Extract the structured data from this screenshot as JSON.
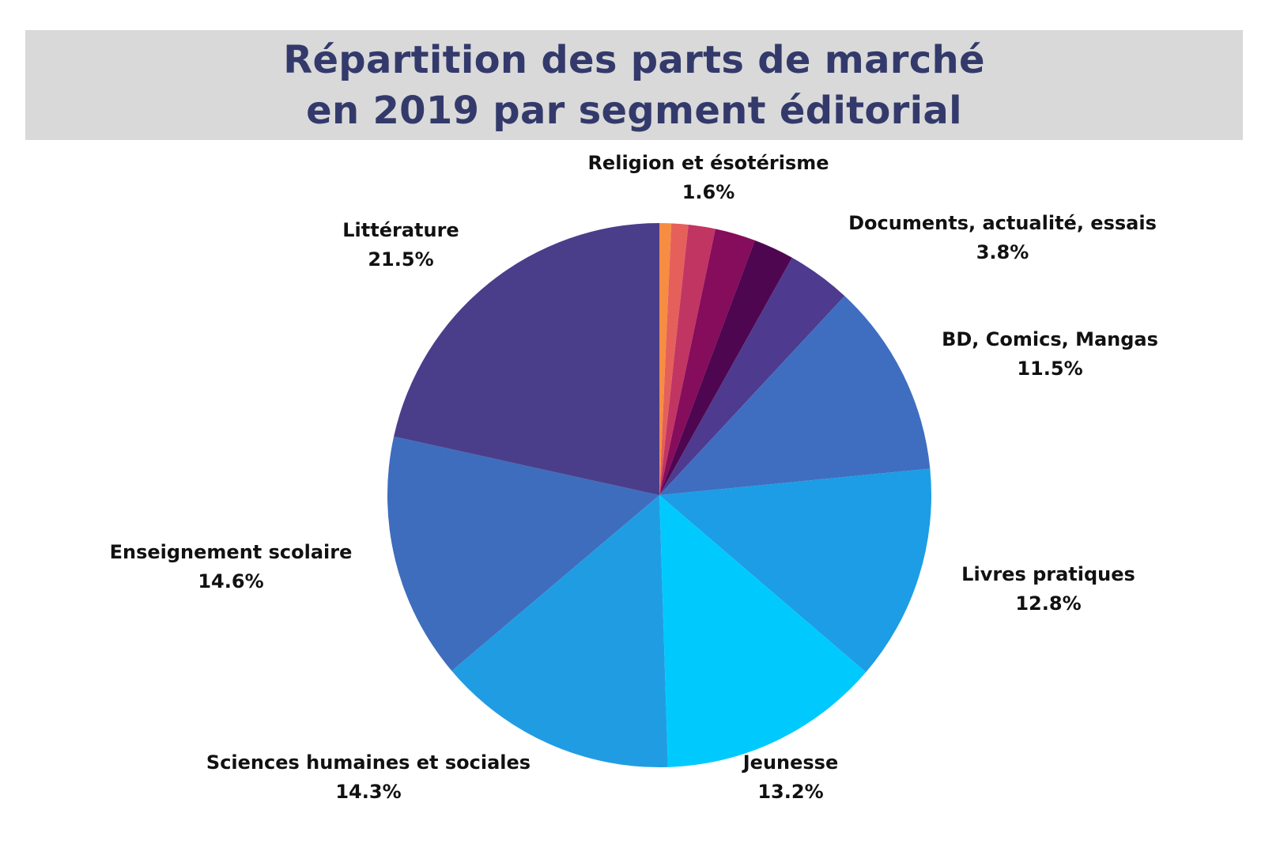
{
  "title": {
    "line1": "Répartition des parts de marché",
    "line2": "en 2019 par segment éditorial"
  },
  "chart_data": {
    "type": "pie",
    "title": "Répartition des parts de marché en 2019 par segment éditorial",
    "start_angle": "12 o'clock, clockwise",
    "slices": [
      {
        "label": "",
        "value": 0.7,
        "value_label": "",
        "color": "#f68d42"
      },
      {
        "label": "",
        "value": 1.0,
        "value_label": "",
        "color": "#e5605a"
      },
      {
        "label": "Religion et ésotérisme",
        "value": 1.6,
        "value_label": "1.6%",
        "color": "#c13563"
      },
      {
        "label": "",
        "value": 2.4,
        "value_label": "",
        "color": "#860c5c"
      },
      {
        "label": "",
        "value": 2.4,
        "value_label": "",
        "color": "#4f0650"
      },
      {
        "label": "Documents, actualité, essais",
        "value": 3.8,
        "value_label": "3.8%",
        "color": "#4e3a8e"
      },
      {
        "label": "BD, Comics, Mangas",
        "value": 11.5,
        "value_label": "11.5%",
        "color": "#3f6ec1"
      },
      {
        "label": "Livres pratiques",
        "value": 12.8,
        "value_label": "12.8%",
        "color": "#1c9de5"
      },
      {
        "label": "Jeunesse",
        "value": 13.2,
        "value_label": "13.2%",
        "color": "#00cafd"
      },
      {
        "label": "Sciences humaines et sociales",
        "value": 14.3,
        "value_label": "14.3%",
        "color": "#209de2"
      },
      {
        "label": "Enseignement scolaire",
        "value": 14.6,
        "value_label": "14.6%",
        "color": "#3e6dbd"
      },
      {
        "label": "Littérature",
        "value": 21.5,
        "value_label": "21.5%",
        "color": "#4a3e8b"
      }
    ]
  }
}
